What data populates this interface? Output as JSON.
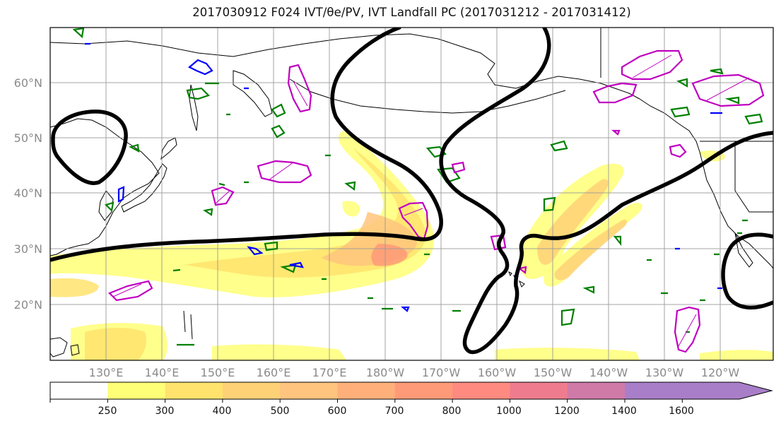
{
  "title": "2017030912 F024 IVT/θe/PV, IVT Landfall PC (2017031212 - 2017031412)",
  "map": {
    "latitude_labels": [
      "60°N",
      "50°N",
      "40°N",
      "30°N",
      "20°N"
    ],
    "longitude_labels": [
      "130°E",
      "140°E",
      "150°E",
      "160°E",
      "170°E",
      "180°W",
      "170°W",
      "160°W",
      "150°W",
      "140°W",
      "130°W",
      "120°W"
    ],
    "colors": {
      "landfall_pc_contour": "#000000",
      "theta_e_contour": "#008000",
      "pv_positive_contour": "#c000c0",
      "pv_negative_contour": "#0000ff",
      "coastline": "#000000",
      "grid": "#9a9a9a"
    }
  },
  "colorbar": {
    "tick_labels": [
      "250",
      "300",
      "400",
      "500",
      "600",
      "700",
      "800",
      "1000",
      "1200",
      "1400",
      "1600"
    ],
    "fill_colors": [
      "#ffffff",
      "#ffff77",
      "#ffe36d",
      "#ffd177",
      "#ffc47d",
      "#ffb07a",
      "#ff9a78",
      "#ff8a80",
      "#ef7c8e",
      "#d07aa8",
      "#a87ec8"
    ]
  }
}
